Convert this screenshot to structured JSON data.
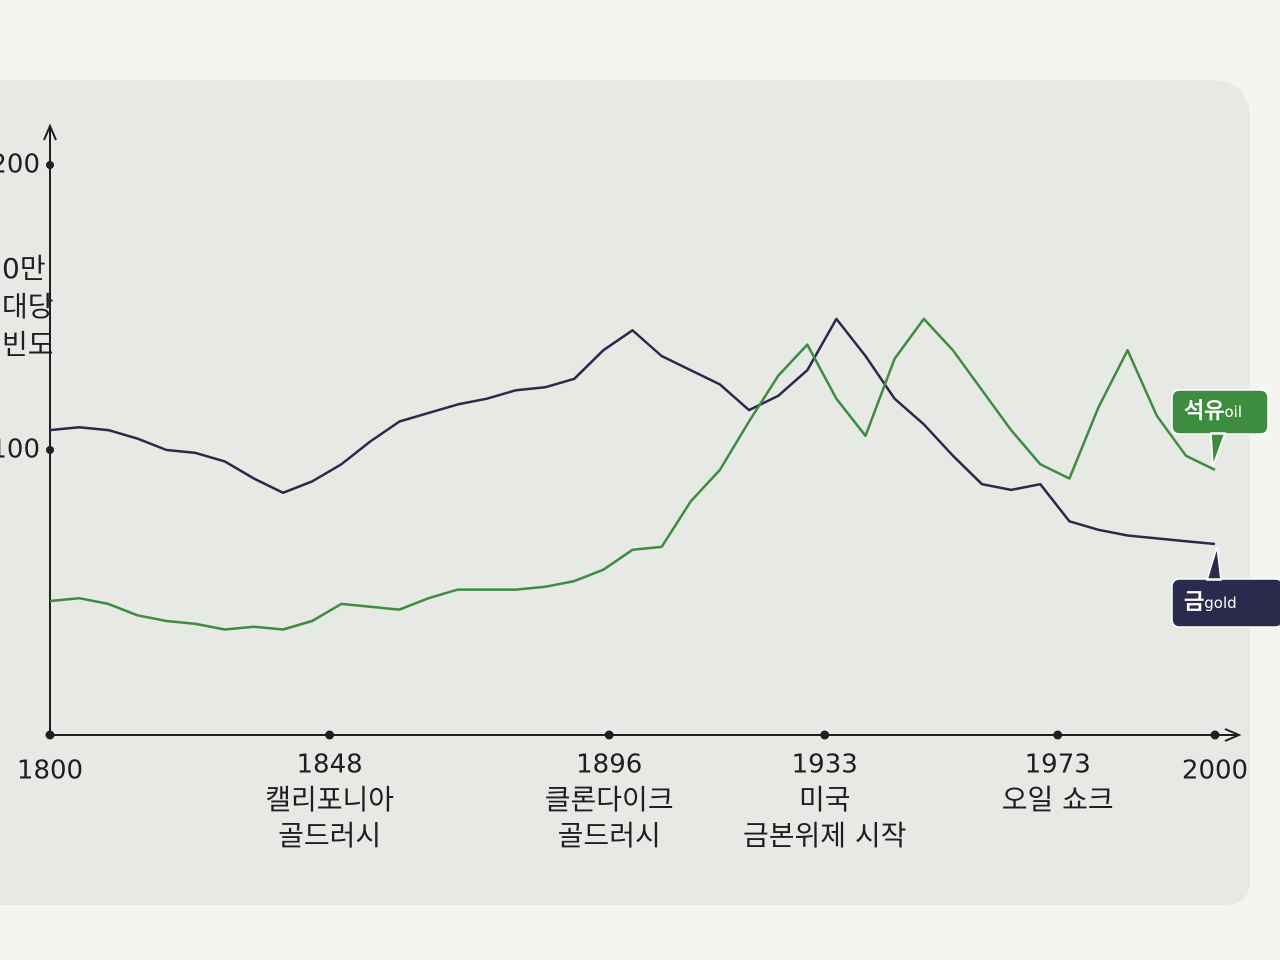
{
  "chart_data": {
    "type": "line",
    "y_label_lines": [
      "0만",
      "대당",
      "빈도"
    ],
    "x": [
      1800,
      1805,
      1810,
      1815,
      1820,
      1825,
      1830,
      1835,
      1840,
      1845,
      1850,
      1855,
      1860,
      1865,
      1870,
      1875,
      1880,
      1885,
      1890,
      1895,
      1900,
      1905,
      1910,
      1915,
      1920,
      1925,
      1930,
      1935,
      1940,
      1945,
      1950,
      1955,
      1960,
      1965,
      1970,
      1975,
      1980,
      1985,
      1990,
      1995,
      2000
    ],
    "series": [
      {
        "name": "금",
        "name_small": "gold",
        "color": "#2b2a4c",
        "values": [
          107,
          108,
          107,
          104,
          100,
          99,
          96,
          90,
          85,
          89,
          95,
          103,
          110,
          113,
          116,
          118,
          121,
          122,
          125,
          135,
          142,
          133,
          128,
          123,
          114,
          119,
          128,
          146,
          133,
          118,
          109,
          98,
          88,
          86,
          88,
          75,
          72,
          70,
          69,
          68,
          67
        ]
      },
      {
        "name": "석유",
        "name_small": "oil",
        "color": "#3d8c3f",
        "values": [
          47,
          48,
          46,
          42,
          40,
          39,
          37,
          38,
          37,
          40,
          46,
          45,
          44,
          48,
          51,
          51,
          51,
          52,
          54,
          58,
          65,
          66,
          82,
          93,
          110,
          126,
          137,
          118,
          105,
          132,
          146,
          135,
          121,
          107,
          95,
          90,
          115,
          135,
          112,
          98,
          93
        ]
      }
    ],
    "xlim": [
      1800,
      2000
    ],
    "xticks": [
      1800,
      1848,
      1896,
      1933,
      1973,
      2000
    ],
    "annotations": [
      {
        "x": 1848,
        "lines": [
          "캘리포니아",
          "골드러시"
        ]
      },
      {
        "x": 1896,
        "lines": [
          "클론다이크",
          "골드러시"
        ]
      },
      {
        "x": 1933,
        "lines": [
          "미국",
          "금본위제 시작"
        ]
      },
      {
        "x": 1973,
        "lines": [
          "오일 쇼크"
        ]
      }
    ],
    "ylim": [
      0,
      210
    ],
    "yticks": [
      100,
      200
    ]
  }
}
